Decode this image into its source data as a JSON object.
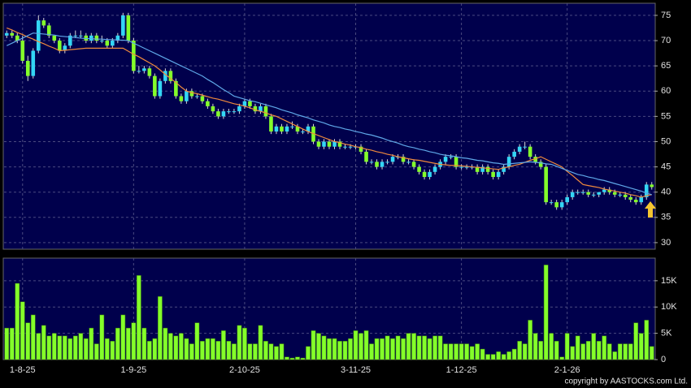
{
  "chart_data": [
    {
      "type": "candlestick",
      "up_color": "#33d6f5",
      "down_color": "#84ff2a",
      "wick_color": "#d8d8d8",
      "ylim": [
        28.7,
        77.4
      ],
      "yticks": [
        30,
        35,
        40,
        45,
        50,
        55,
        60,
        65,
        70,
        75
      ],
      "grid": true,
      "open": [
        71,
        71.5,
        71,
        70,
        66,
        63,
        68,
        74,
        73,
        71,
        70,
        68,
        69,
        71,
        71,
        71,
        70,
        71,
        70,
        70,
        69,
        70,
        71,
        75,
        70,
        64,
        64,
        64.5,
        63,
        59,
        62,
        64,
        62,
        59,
        58,
        60,
        59,
        59,
        58,
        57,
        56,
        55,
        56,
        56,
        56,
        57,
        58,
        57,
        56,
        57,
        55,
        52,
        53,
        52,
        53,
        53,
        52,
        52,
        53,
        50,
        49,
        50,
        49,
        50,
        49,
        49,
        49,
        49,
        48,
        46,
        46,
        45,
        46,
        46,
        47,
        47,
        46,
        46,
        45,
        44,
        43,
        44,
        45,
        46,
        47,
        47,
        45,
        45,
        45,
        45,
        44,
        45,
        44,
        43,
        44,
        45,
        47,
        48,
        49,
        49,
        47,
        46,
        45,
        38,
        38,
        37,
        38,
        39,
        40,
        40,
        40,
        39.5,
        39.5,
        40,
        40.5,
        40,
        39.5,
        39.5,
        39,
        38.5,
        38,
        39,
        41.5
      ],
      "high": [
        72,
        72,
        71.5,
        71,
        67,
        68.5,
        75,
        74.5,
        73.5,
        71,
        70.5,
        69.5,
        71.5,
        72,
        72,
        71.5,
        71.5,
        71.5,
        71,
        70.5,
        70.5,
        71.5,
        75.5,
        75.5,
        70.5,
        65,
        65,
        65,
        63.5,
        62.5,
        64.5,
        64.5,
        62.5,
        59.5,
        60.5,
        60.5,
        59.5,
        59.5,
        58.5,
        57.5,
        56.5,
        56.5,
        56.5,
        56.5,
        57.5,
        58.5,
        58.5,
        57.5,
        57.5,
        57.5,
        55.5,
        53.5,
        53.5,
        53.5,
        54,
        53.5,
        52.5,
        53.5,
        53.5,
        50.5,
        50.5,
        50.5,
        50.5,
        50.5,
        49.5,
        49.5,
        49.5,
        49.5,
        48.5,
        46.5,
        46.5,
        46.5,
        46.5,
        47.5,
        47.5,
        47.5,
        46.5,
        46.5,
        45.5,
        44.5,
        44.5,
        45.5,
        46.5,
        47.5,
        47.5,
        47.5,
        45.5,
        45.5,
        45.5,
        45.5,
        45.5,
        45.5,
        44.5,
        44.5,
        45.5,
        47.5,
        48.5,
        49.5,
        50,
        49.5,
        47.5,
        46.5,
        45.5,
        38.5,
        38.5,
        38.5,
        39.5,
        40.5,
        40.5,
        40.5,
        40.5,
        40,
        40,
        41,
        41,
        40.5,
        40,
        40,
        39.5,
        39,
        39.5,
        42,
        42
      ],
      "low": [
        70.5,
        70.5,
        69.5,
        65.5,
        62,
        62.5,
        67.5,
        72.5,
        70.5,
        69.5,
        67.5,
        67.5,
        68.5,
        70.5,
        70.5,
        69.5,
        69.5,
        69.5,
        69.5,
        68.5,
        68.5,
        69.5,
        70.5,
        69.5,
        63.5,
        63.5,
        63.5,
        62.5,
        58.5,
        58.5,
        61.5,
        61.5,
        58.5,
        57.5,
        57.5,
        58.5,
        58.5,
        57.5,
        56.5,
        55.5,
        54.5,
        54.5,
        55.5,
        55.5,
        55.5,
        56.5,
        56.5,
        55.5,
        55.5,
        54.5,
        51.5,
        51.5,
        51.5,
        51.5,
        52.5,
        51.5,
        51.5,
        51.5,
        49.5,
        48.5,
        48.5,
        48.5,
        48.5,
        48.5,
        48.5,
        48.5,
        48.5,
        47.5,
        45.5,
        45.5,
        44.5,
        44.5,
        45.5,
        45.5,
        46.5,
        45.5,
        45.5,
        44.5,
        43.5,
        42.5,
        42.5,
        43.5,
        44.5,
        45.5,
        46.5,
        44.5,
        44.5,
        44.5,
        44.5,
        43.5,
        43.5,
        43.5,
        42.5,
        42.5,
        43.5,
        44.5,
        46.5,
        47.5,
        48.5,
        46.5,
        45.5,
        44.5,
        37.5,
        37.5,
        36.5,
        36.5,
        37.5,
        38.5,
        39.5,
        39.5,
        39,
        39,
        39,
        39.5,
        39.5,
        39,
        39,
        38.5,
        38,
        37.5,
        37.5,
        38.5,
        40.5
      ],
      "close": [
        71.5,
        71,
        70,
        66,
        63,
        68,
        74,
        73,
        71,
        70,
        68,
        69,
        71,
        71,
        71,
        70,
        71,
        70,
        70,
        69,
        70,
        71,
        75,
        70,
        64,
        64,
        64.5,
        63,
        59,
        62,
        64,
        62,
        59,
        58,
        60,
        59,
        59,
        58,
        57,
        56,
        55,
        56,
        56,
        56,
        57,
        58,
        57,
        56,
        57,
        55,
        52,
        53,
        52,
        53,
        53,
        52,
        52,
        53,
        50,
        49,
        50,
        49,
        50,
        49,
        49,
        49,
        49,
        48,
        46,
        46,
        45,
        46,
        46,
        47,
        47,
        46,
        46,
        45,
        44,
        43,
        44,
        45,
        46,
        47,
        47,
        45,
        45,
        45,
        45,
        44,
        45,
        44,
        43,
        44,
        45,
        47,
        48,
        49,
        49,
        47,
        46,
        45,
        38,
        38,
        37,
        38,
        39,
        40,
        40,
        40,
        39.5,
        39.5,
        40,
        40.5,
        40,
        39.5,
        39.5,
        39,
        38.5,
        38,
        39,
        41.5,
        41
      ],
      "lines": [
        {
          "color": "#f08a3c",
          "values": [
            72.5,
            72.1,
            71.6,
            71.2,
            70.7,
            70.3,
            69.8,
            69.4,
            68.9,
            68.5,
            68,
            68.1,
            68.2,
            68.3,
            68.4,
            68.5,
            68.5,
            68.5,
            68.5,
            68.5,
            68.5,
            68.5,
            68.5,
            67.9,
            67.3,
            66.8,
            66.2,
            65.6,
            65,
            64.2,
            63.3,
            62.5,
            61.7,
            60.8,
            60,
            59.7,
            59.5,
            59.2,
            58.9,
            58.6,
            58.4,
            58.1,
            57.8,
            57.5,
            57.3,
            57,
            56.7,
            56.3,
            56,
            55.7,
            55.3,
            55,
            54.5,
            54,
            53.5,
            53,
            52.5,
            52,
            51.6,
            51.2,
            50.8,
            50.4,
            50,
            49.8,
            49.5,
            49.3,
            49,
            48.8,
            48.5,
            48.3,
            48,
            47.8,
            47.5,
            47.3,
            47,
            46.8,
            46.6,
            46.4,
            46.3,
            46.1,
            45.9,
            45.7,
            45.5,
            45.4,
            45.3,
            45.3,
            45.2,
            45.1,
            45,
            44.9,
            44.8,
            44.7,
            44.6,
            44.5,
            44.8,
            45,
            45.3,
            45.5,
            45.9,
            46.3,
            46.6,
            47,
            46.5,
            46,
            45.5,
            45,
            44.1,
            43.3,
            42.4,
            41.5,
            41.3,
            41.1,
            40.9,
            40.6,
            40.4,
            40.2,
            40,
            39.8,
            39.5,
            39.3,
            39,
            39.3,
            39.5
          ]
        },
        {
          "color": "#5fa8e8",
          "values": [
            69,
            69.5,
            70,
            70.5,
            71,
            71.5,
            71.4,
            71.3,
            71.2,
            71.1,
            70.9,
            70.8,
            70.7,
            70.6,
            70.5,
            70.4,
            70.4,
            70.3,
            70.3,
            70.2,
            70.2,
            70.1,
            70.1,
            70,
            69.5,
            69,
            68.5,
            68,
            67.5,
            67,
            66.5,
            66,
            65.5,
            65,
            64.5,
            64,
            63.5,
            63,
            62.3,
            61.7,
            61,
            60.3,
            59.7,
            59,
            58.7,
            58.4,
            58.1,
            57.9,
            57.6,
            57.3,
            57,
            56.7,
            56.3,
            56,
            55.7,
            55.3,
            55,
            54.7,
            54.3,
            54,
            53.7,
            53.3,
            53,
            52.8,
            52.5,
            52.3,
            52,
            51.8,
            51.5,
            51.3,
            51,
            50.7,
            50.3,
            50,
            49.7,
            49.3,
            49,
            48.8,
            48.5,
            48.3,
            48,
            47.8,
            47.5,
            47.3,
            47.2,
            47,
            46.8,
            46.7,
            46.5,
            46.3,
            46.2,
            46,
            45.8,
            45.7,
            45.5,
            45.6,
            45.7,
            45.8,
            45.9,
            46,
            45.9,
            45.8,
            45.6,
            45.5,
            45.1,
            44.7,
            44.3,
            43.9,
            43.5,
            43.3,
            43,
            42.8,
            42.5,
            42.3,
            42,
            41.7,
            41.4,
            41.1,
            40.8,
            40.5,
            40.2,
            39.8,
            39.5
          ]
        }
      ]
    },
    {
      "type": "bar",
      "color": "#84ff2a",
      "ylim": [
        0,
        19300
      ],
      "yticks": [
        0,
        {
          "value": 5000,
          "label": "5K"
        },
        {
          "value": 10000,
          "label": "10K"
        },
        {
          "value": 15000,
          "label": "15K"
        }
      ],
      "grid": true,
      "categories": [
        null,
        null,
        null,
        "1-8-25",
        null,
        null,
        null,
        null,
        null,
        null,
        null,
        null,
        null,
        null,
        null,
        null,
        null,
        null,
        null,
        null,
        null,
        null,
        null,
        null,
        "1-9-25",
        null,
        null,
        null,
        null,
        null,
        null,
        null,
        null,
        null,
        null,
        null,
        null,
        null,
        null,
        null,
        null,
        null,
        null,
        null,
        null,
        "2-10-25",
        null,
        null,
        null,
        null,
        null,
        null,
        null,
        null,
        null,
        null,
        null,
        null,
        null,
        null,
        null,
        null,
        null,
        null,
        null,
        null,
        "3-11-25",
        null,
        null,
        null,
        null,
        null,
        null,
        null,
        null,
        null,
        null,
        null,
        null,
        null,
        null,
        null,
        null,
        null,
        null,
        null,
        "1-12-25",
        null,
        null,
        null,
        null,
        null,
        null,
        null,
        null,
        null,
        null,
        null,
        null,
        null,
        null,
        null,
        null,
        null,
        null,
        null,
        "2-1-26",
        null,
        null,
        null,
        null,
        null,
        null,
        null,
        null,
        null,
        null,
        null,
        null,
        null,
        null,
        null,
        null
      ],
      "values": [
        6000,
        6000,
        14500,
        11000,
        7000,
        8500,
        5000,
        6500,
        4500,
        5000,
        4500,
        4500,
        4000,
        4500,
        5000,
        4000,
        6000,
        3000,
        8500,
        4000,
        3500,
        6000,
        8500,
        6000,
        7000,
        16000,
        6000,
        3500,
        4000,
        12000,
        6000,
        5000,
        4500,
        5000,
        4000,
        3000,
        7000,
        3500,
        4000,
        4000,
        3500,
        5500,
        3500,
        3000,
        6500,
        6000,
        3000,
        3000,
        6500,
        3500,
        3000,
        2500,
        3000,
        500,
        300,
        500,
        300,
        2500,
        5500,
        5000,
        4500,
        4000,
        4000,
        3500,
        3500,
        4000,
        5500,
        5000,
        5500,
        3000,
        4000,
        4000,
        4500,
        4000,
        4500,
        4000,
        5000,
        5000,
        4500,
        4500,
        4000,
        4500,
        4500,
        3000,
        3000,
        3000,
        3000,
        3000,
        2500,
        3000,
        2000,
        1000,
        1000,
        1500,
        1000,
        1500,
        2000,
        3500,
        3000,
        7500,
        5000,
        3500,
        18000,
        5000,
        3500,
        500,
        5000,
        2500,
        4500,
        3000,
        3500,
        5000,
        3500,
        4500,
        3000,
        1500,
        3000,
        3000,
        3000,
        7000,
        5000,
        7500,
        2500
      ],
      "source": "copyright by AASTOCKS.com Ltd."
    }
  ]
}
